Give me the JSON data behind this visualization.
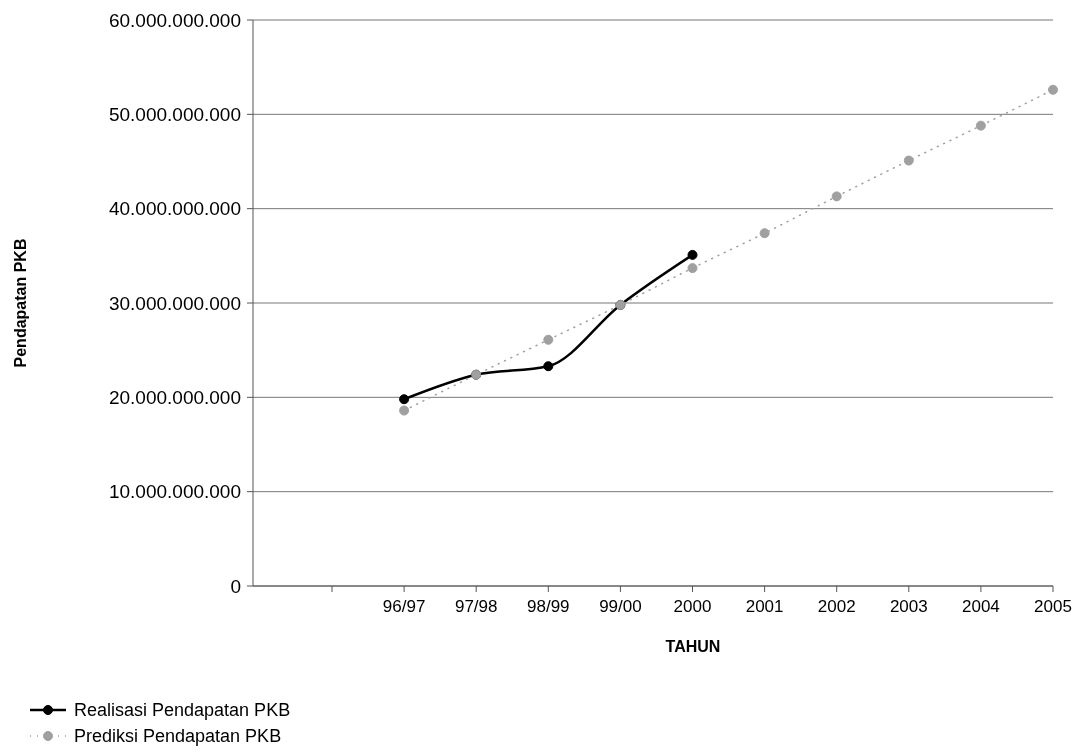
{
  "chart_data": {
    "type": "line",
    "xlabel": "TAHUN",
    "ylabel": "Pendapatan PKB",
    "categories": [
      null,
      "96/97",
      "97/98",
      "98/99",
      "99/00",
      "2000",
      "2001",
      "2002",
      "2003",
      "2004",
      "2005"
    ],
    "series": [
      {
        "name": "Realisasi Pendapatan PKB",
        "color": "#000000",
        "marker": "circle",
        "line_style": "solid",
        "values": [
          null,
          19800000000,
          22400000000,
          23300000000,
          29800000000,
          35100000000,
          null,
          null,
          null,
          null,
          null
        ]
      },
      {
        "name": "Prediksi Pendapatan PKB",
        "color": "#a0a0a0",
        "marker": "circle",
        "line_style": "dotted",
        "values": [
          null,
          18600000000,
          22400000000,
          26100000000,
          29800000000,
          33700000000,
          37400000000,
          41300000000,
          45100000000,
          48800000000,
          52600000000
        ]
      }
    ],
    "ylim": [
      0,
      60000000000
    ],
    "yticks": [
      {
        "value": 0,
        "label": "0"
      },
      {
        "value": 10000000000,
        "label": "10.000.000.000"
      },
      {
        "value": 20000000000,
        "label": "20.000.000.000"
      },
      {
        "value": 30000000000,
        "label": "30.000.000.000"
      },
      {
        "value": 40000000000,
        "label": "40.000.000.000"
      },
      {
        "value": 50000000000,
        "label": "50.000.000.000"
      },
      {
        "value": 60000000000,
        "label": "60.000.000.000"
      }
    ],
    "grid": "y",
    "legend": "bottom left"
  }
}
